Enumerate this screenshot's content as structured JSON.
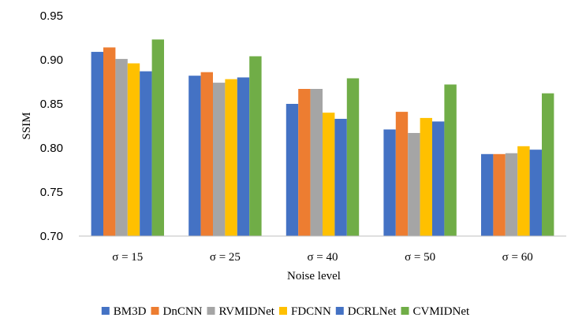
{
  "colors": {
    "background": "#ffffff",
    "axis": "#bfbfbf",
    "text": "#000000"
  },
  "chart_data": {
    "type": "bar",
    "title": "",
    "xlabel": "Noise level",
    "ylabel": "SSIM",
    "ylim": [
      0.7,
      0.95
    ],
    "yticks": [
      "0.70",
      "0.75",
      "0.80",
      "0.85",
      "0.90",
      "0.95"
    ],
    "grid": false,
    "legend_position": "bottom",
    "categories": [
      "σ = 15",
      "σ = 25",
      "σ = 40",
      "σ = 50",
      "σ = 60"
    ],
    "series": [
      {
        "name": "BM3D",
        "color": "#4472c4",
        "values": [
          0.909,
          0.882,
          0.85,
          0.821,
          0.793
        ]
      },
      {
        "name": "DnCNN",
        "color": "#ed7d31",
        "values": [
          0.914,
          0.886,
          0.867,
          0.841,
          0.793
        ]
      },
      {
        "name": "RVMIDNet",
        "color": "#a5a5a5",
        "values": [
          0.901,
          0.874,
          0.867,
          0.817,
          0.794
        ]
      },
      {
        "name": "FDCNN",
        "color": "#ffc000",
        "values": [
          0.896,
          0.878,
          0.84,
          0.834,
          0.802
        ]
      },
      {
        "name": "DCRLNet",
        "color": "#4472c4",
        "values": [
          0.887,
          0.88,
          0.833,
          0.83,
          0.798
        ]
      },
      {
        "name": "CVMIDNet",
        "color": "#70ad47",
        "values": [
          0.923,
          0.904,
          0.879,
          0.872,
          0.862
        ]
      }
    ]
  }
}
